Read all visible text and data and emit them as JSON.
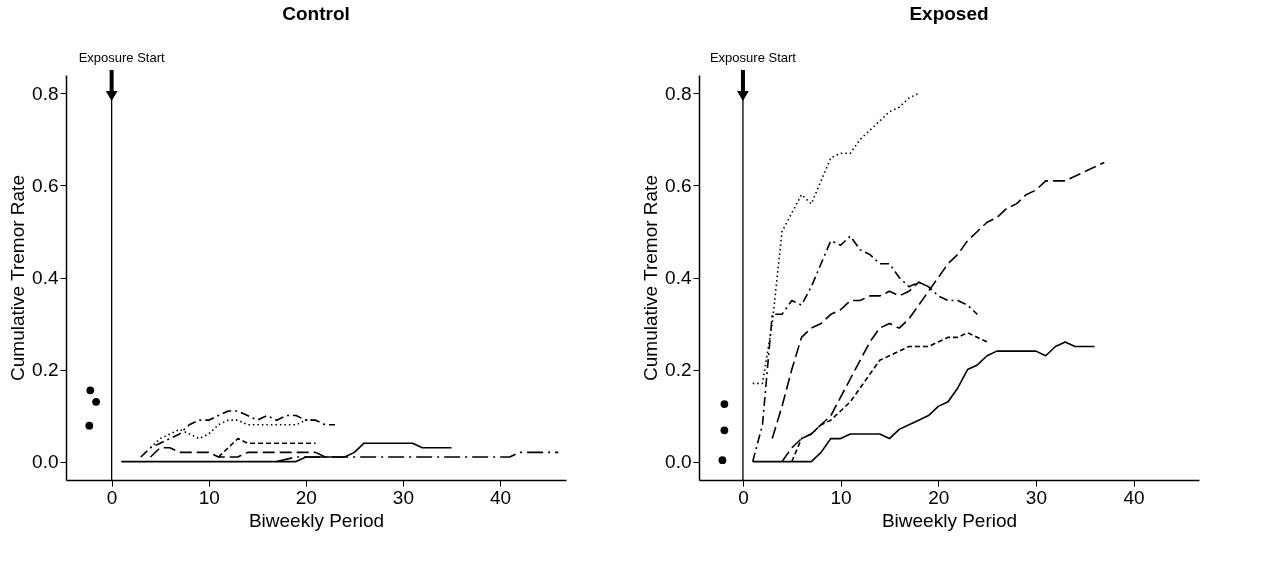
{
  "chart_data": [
    {
      "type": "line",
      "title": "Control",
      "xlabel": "Biweekly Period",
      "ylabel": "Cumulative Tremor Rate",
      "xlim": [
        -4.7,
        46.8
      ],
      "ylim": [
        -0.04,
        0.84
      ],
      "xticks": [
        0,
        10,
        20,
        30,
        40
      ],
      "yticks": [
        {
          "value": 0,
          "label": "0.0"
        },
        0.2,
        0.4,
        0.6,
        0.8
      ],
      "grid": false,
      "ref_lines": [
        {
          "axis": "x",
          "value": 0,
          "label": "Exposure Start"
        }
      ],
      "series": [
        {
          "type": "scatter",
          "marker": "circle",
          "color": "#000000",
          "x": [
            -2.2,
            -1.6,
            -2.3
          ],
          "values": [
            0.155,
            0.13,
            0.078
          ]
        },
        {
          "line_style": "solid",
          "color": "#000000",
          "x": [
            1,
            19,
            20,
            24,
            25,
            26,
            31,
            32,
            35
          ],
          "values": [
            0,
            0,
            0.01,
            0.01,
            0.02,
            0.04,
            0.04,
            0.03,
            0.03
          ]
        },
        {
          "line_style": "longdashdot",
          "color": "#000000",
          "x": [
            17,
            19,
            20,
            41,
            42,
            46
          ],
          "values": [
            0,
            0.01,
            0.01,
            0.01,
            0.02,
            0.02
          ]
        },
        {
          "line_style": "longdash",
          "color": "#000000",
          "x": [
            4,
            5,
            6,
            7,
            10,
            11,
            13,
            14,
            21,
            22
          ],
          "values": [
            0.01,
            0.03,
            0.03,
            0.02,
            0.02,
            0.01,
            0.01,
            0.02,
            0.02,
            0.01
          ]
        },
        {
          "line_style": "dashed",
          "color": "#000000",
          "x": [
            11,
            12,
            13,
            14,
            21
          ],
          "values": [
            0.01,
            0.03,
            0.05,
            0.04,
            0.04
          ]
        },
        {
          "line_style": "dotted",
          "color": "#000000",
          "x": [
            4,
            5,
            6,
            7,
            8,
            9,
            10,
            11,
            12,
            13,
            14,
            19,
            20,
            21
          ],
          "values": [
            0.03,
            0.05,
            0.06,
            0.07,
            0.06,
            0.05,
            0.06,
            0.08,
            0.09,
            0.09,
            0.08,
            0.08,
            0.09,
            0.09
          ]
        },
        {
          "line_style": "dashdot",
          "color": "#000000",
          "x": [
            3,
            4,
            5,
            6,
            7,
            8,
            9,
            10,
            11,
            12,
            13,
            14,
            15,
            16,
            17,
            18,
            19,
            20,
            21,
            22,
            23
          ],
          "values": [
            0.01,
            0.03,
            0.04,
            0.05,
            0.06,
            0.08,
            0.09,
            0.09,
            0.1,
            0.11,
            0.11,
            0.1,
            0.09,
            0.1,
            0.09,
            0.1,
            0.1,
            0.09,
            0.09,
            0.08,
            0.08
          ]
        }
      ]
    },
    {
      "type": "line",
      "title": "Exposed",
      "xlabel": "Biweekly Period",
      "ylabel": "Cumulative Tremor Rate",
      "xlim": [
        -4.5,
        46.7
      ],
      "ylim": [
        -0.04,
        0.84
      ],
      "xticks": [
        0,
        10,
        20,
        30,
        40
      ],
      "yticks": [
        {
          "value": 0,
          "label": "0.0"
        },
        0.2,
        0.4,
        0.6,
        0.8
      ],
      "grid": false,
      "ref_lines": [
        {
          "axis": "x",
          "value": 0,
          "label": "Exposure Start"
        }
      ],
      "series": [
        {
          "type": "scatter",
          "marker": "circle",
          "color": "#000000",
          "x": [
            -1.9,
            -1.9,
            -2.1
          ],
          "values": [
            0.125,
            0.068,
            0.003
          ]
        },
        {
          "line_style": "solid",
          "color": "#000000",
          "x": [
            1,
            7,
            8,
            9,
            10,
            11,
            14,
            15,
            16,
            17,
            18,
            19,
            20,
            21,
            22,
            23,
            24,
            25,
            26,
            30,
            31,
            32,
            33,
            34,
            36
          ],
          "values": [
            0,
            0,
            0.02,
            0.05,
            0.05,
            0.06,
            0.06,
            0.05,
            0.07,
            0.08,
            0.09,
            0.1,
            0.12,
            0.13,
            0.16,
            0.2,
            0.21,
            0.23,
            0.24,
            0.24,
            0.23,
            0.25,
            0.26,
            0.25,
            0.25
          ]
        },
        {
          "line_style": "dotted",
          "color": "#000000",
          "x": [
            1,
            2,
            3,
            4,
            5,
            6,
            7,
            8,
            9,
            10,
            11,
            12,
            13,
            14,
            15,
            16,
            17,
            18
          ],
          "values": [
            0.17,
            0.17,
            0.3,
            0.5,
            0.54,
            0.58,
            0.56,
            0.61,
            0.66,
            0.67,
            0.67,
            0.7,
            0.72,
            0.74,
            0.76,
            0.77,
            0.79,
            0.8
          ]
        },
        {
          "line_style": "dashdot",
          "color": "#000000",
          "x": [
            1,
            2,
            3,
            4,
            5,
            6,
            7,
            8,
            9,
            10,
            11,
            12,
            13,
            14,
            15,
            16,
            17,
            18,
            19,
            20,
            21,
            22,
            23,
            24
          ],
          "values": [
            0,
            0.08,
            0.32,
            0.32,
            0.35,
            0.34,
            0.38,
            0.43,
            0.48,
            0.47,
            0.49,
            0.46,
            0.45,
            0.43,
            0.43,
            0.4,
            0.38,
            0.39,
            0.38,
            0.36,
            0.35,
            0.35,
            0.34,
            0.32
          ]
        },
        {
          "line_style": "longdash",
          "color": "#000000",
          "x": [
            3,
            4,
            5,
            6,
            7,
            8,
            9,
            10,
            11,
            12,
            13,
            14,
            15,
            16,
            17,
            18,
            19
          ],
          "values": [
            0.05,
            0.12,
            0.2,
            0.27,
            0.29,
            0.3,
            0.32,
            0.33,
            0.35,
            0.35,
            0.36,
            0.36,
            0.37,
            0.36,
            0.37,
            0.39,
            0.38
          ]
        },
        {
          "line_style": "longdash",
          "color": "#000000",
          "x": [
            4,
            5,
            6,
            7,
            8,
            9,
            10,
            11,
            12,
            13,
            14,
            15,
            16,
            17,
            18,
            19,
            20,
            21,
            22,
            23,
            24,
            25,
            26,
            27,
            28,
            29,
            30,
            31,
            33,
            34,
            35,
            36,
            37
          ],
          "values": [
            0,
            0.03,
            0.05,
            0.06,
            0.08,
            0.1,
            0.14,
            0.18,
            0.22,
            0.26,
            0.29,
            0.3,
            0.29,
            0.31,
            0.34,
            0.37,
            0.4,
            0.43,
            0.45,
            0.48,
            0.5,
            0.52,
            0.53,
            0.55,
            0.56,
            0.58,
            0.59,
            0.61,
            0.61,
            0.62,
            0.63,
            0.64,
            0.65
          ]
        },
        {
          "line_style": "dashed",
          "color": "#000000",
          "x": [
            5,
            6,
            7,
            8,
            9,
            10,
            11,
            12,
            13,
            14,
            15,
            16,
            17,
            19,
            20,
            21,
            22,
            23,
            24,
            25
          ],
          "values": [
            0,
            0.05,
            0.06,
            0.08,
            0.09,
            0.11,
            0.13,
            0.16,
            0.19,
            0.22,
            0.23,
            0.24,
            0.25,
            0.25,
            0.26,
            0.27,
            0.27,
            0.28,
            0.27,
            0.26
          ]
        }
      ]
    }
  ]
}
